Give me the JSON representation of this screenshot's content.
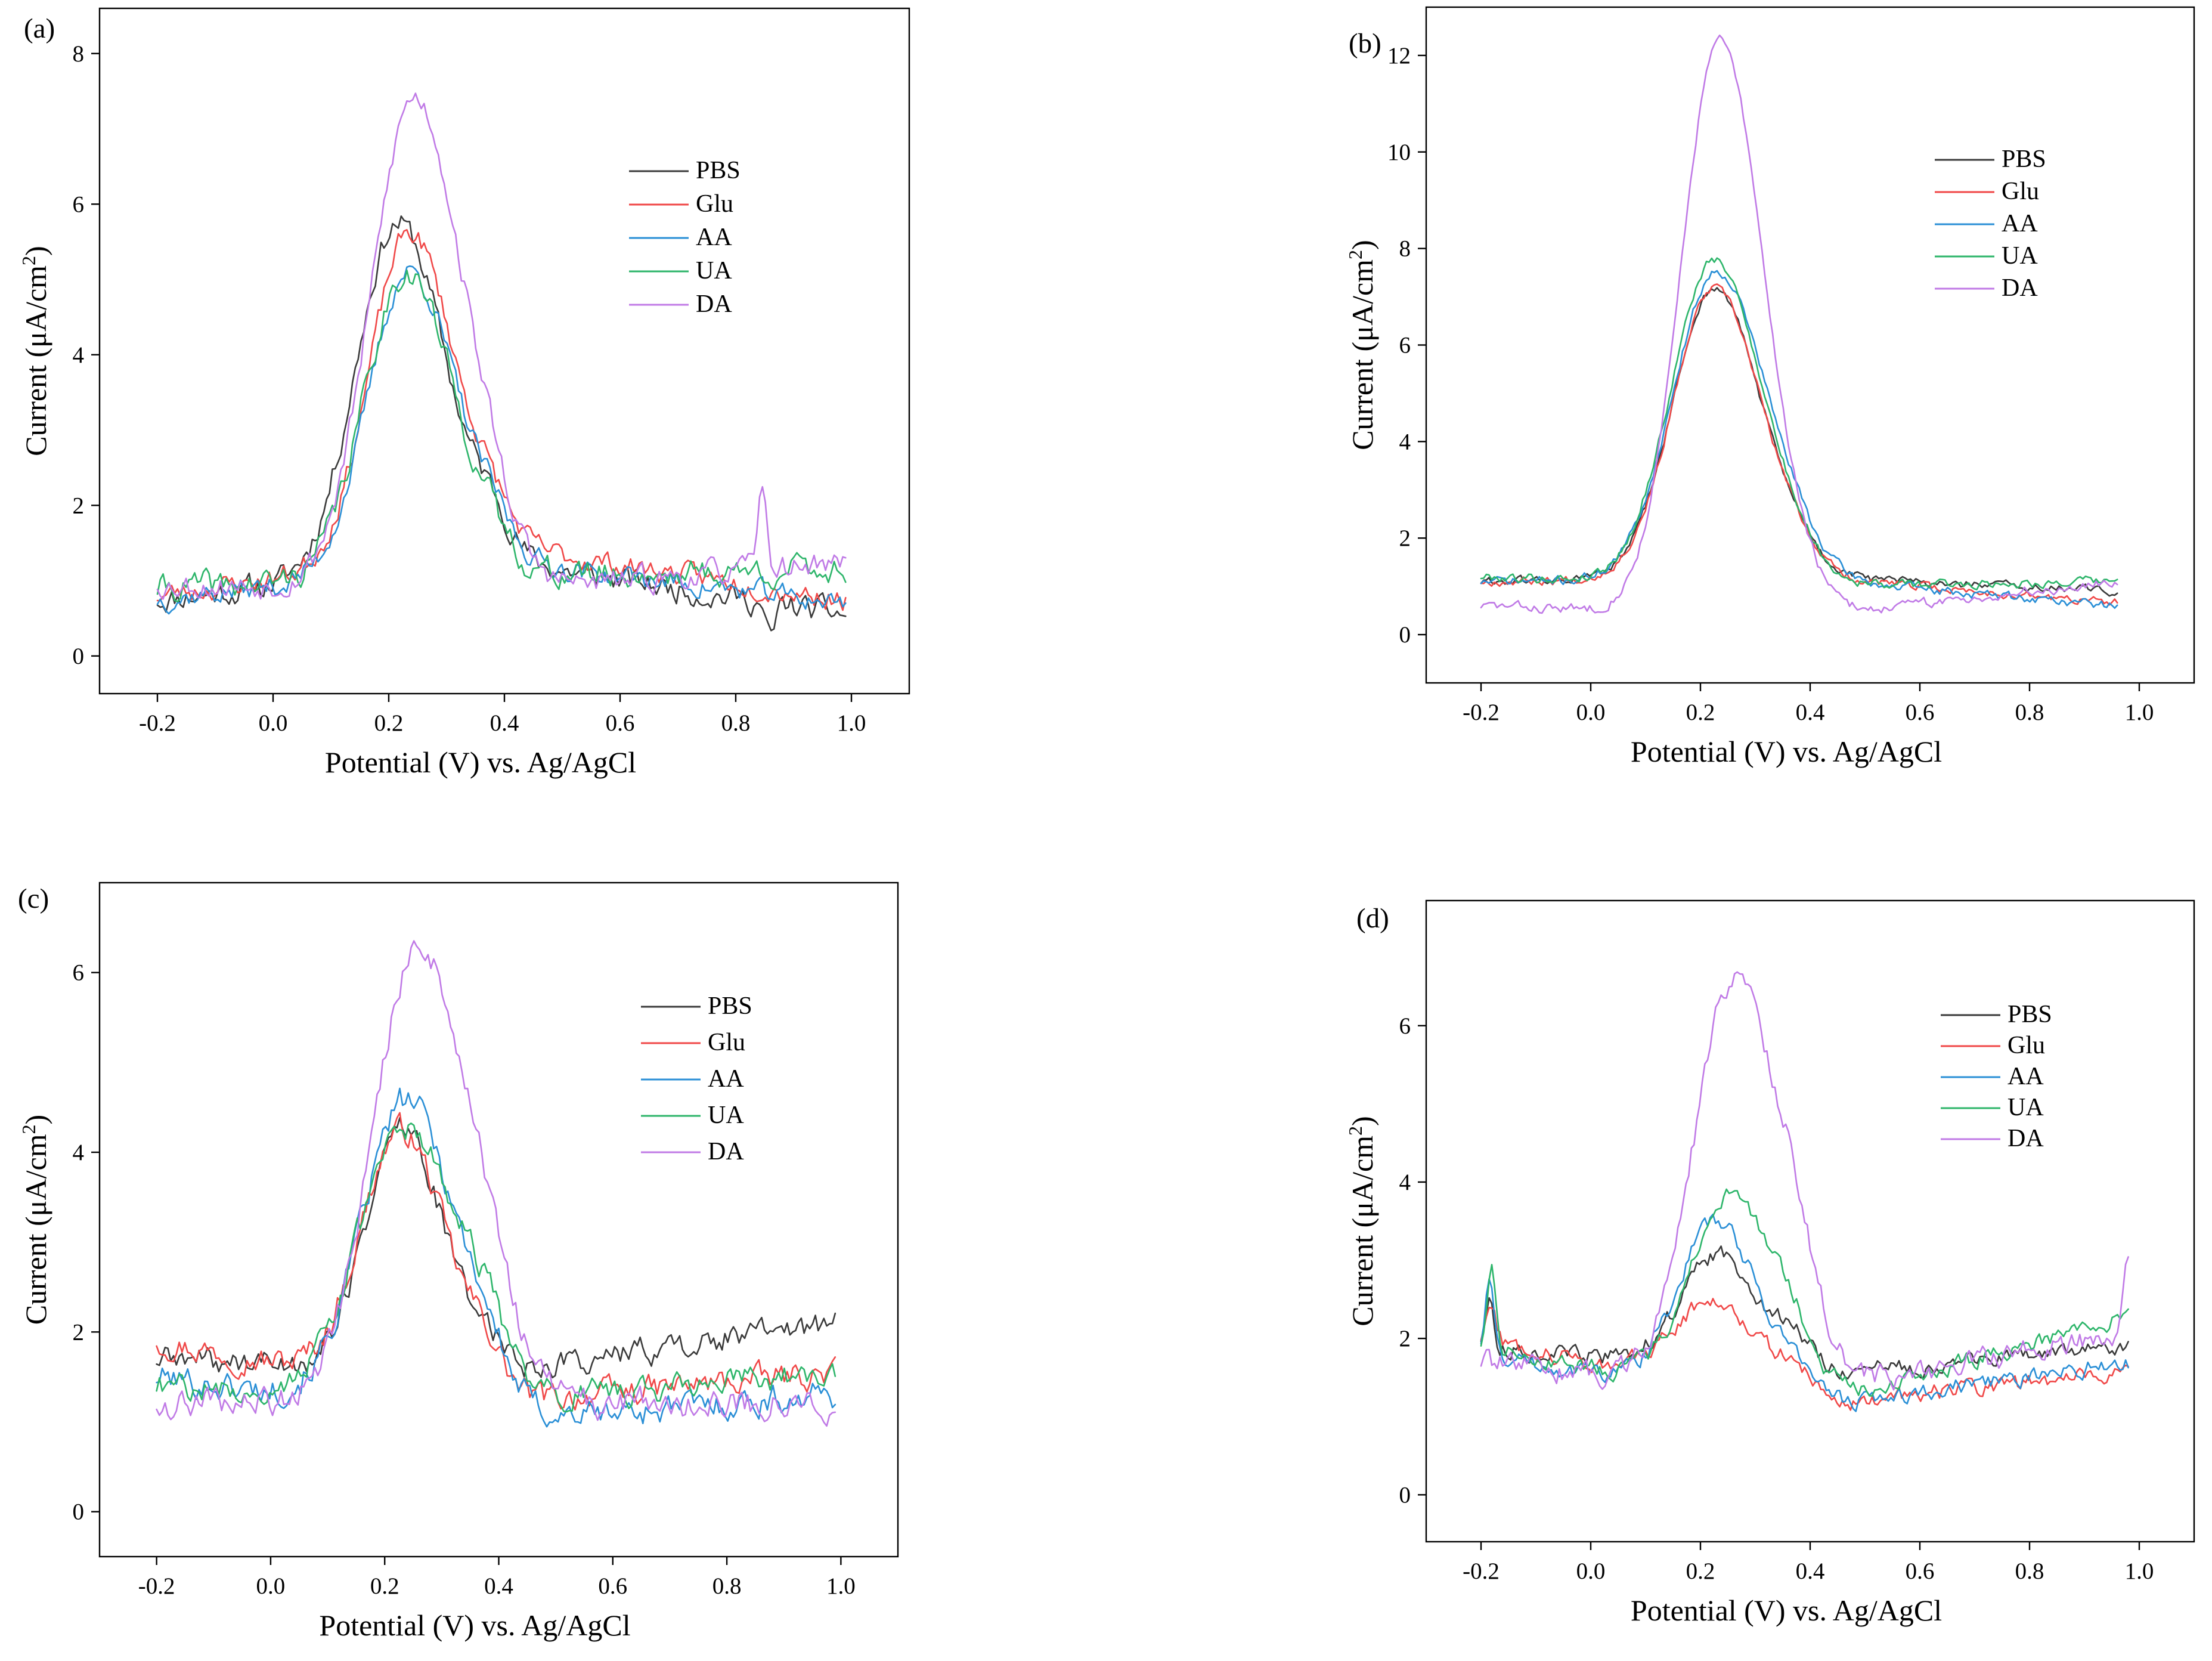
{
  "chart_data": [
    {
      "panel": "(a)",
      "type": "line",
      "xlabel": "Potential (V) vs. Ag/AgCl",
      "ylabel": "Current (μA/cm²)",
      "xlim": [
        -0.3,
        1.1
      ],
      "ylim": [
        -0.5,
        8.6
      ],
      "xticks": [
        -0.2,
        0.0,
        0.2,
        0.4,
        0.6,
        0.8,
        1.0
      ],
      "xtick_labels": [
        "-0.2",
        "0.0",
        "0.2",
        "0.4",
        "0.6",
        "0.8",
        "1.0"
      ],
      "yticks": [
        0,
        2,
        4,
        6,
        8
      ],
      "ytick_labels": [
        "0",
        "2",
        "4",
        "6",
        "8"
      ],
      "legend_position": "top-right",
      "x_start": -0.2,
      "x_end": 0.99,
      "series": [
        {
          "name": "PBS",
          "color": "#3a3a3a",
          "peak": 0.215,
          "height": 4.65,
          "width": 0.072,
          "shoulder": 0.35,
          "baseline_start": 0.75,
          "baseline_mid": 1.25,
          "baseline_end": 0.55,
          "noise": 0.23,
          "seed": 11,
          "spikes": [
            {
              "x": 0.86,
              "h": -0.5
            }
          ]
        },
        {
          "name": "Glu",
          "color": "#f04848",
          "peak": 0.235,
          "height": 4.35,
          "width": 0.068,
          "shoulder": 0.25,
          "baseline_start": 0.8,
          "baseline_mid": 1.45,
          "baseline_end": 0.75,
          "noise": 0.2,
          "seed": 23,
          "spikes": []
        },
        {
          "name": "AA",
          "color": "#2a8fd6",
          "peak": 0.235,
          "height": 4.0,
          "width": 0.07,
          "shoulder": 0.25,
          "baseline_start": 0.75,
          "baseline_mid": 1.25,
          "baseline_end": 0.7,
          "noise": 0.2,
          "seed": 37,
          "spikes": []
        },
        {
          "name": "UA",
          "color": "#2db56a",
          "peak": 0.23,
          "height": 4.1,
          "width": 0.072,
          "shoulder": 0.2,
          "baseline_start": 0.9,
          "baseline_mid": 1.05,
          "baseline_end": 1.15,
          "noise": 0.25,
          "seed": 41,
          "spikes": []
        },
        {
          "name": "DA",
          "color": "#c07ae6",
          "peak": 0.245,
          "height": 6.55,
          "width": 0.075,
          "shoulder": 0.3,
          "baseline_start": 0.95,
          "baseline_mid": 0.85,
          "baseline_end": 1.25,
          "noise": 0.22,
          "seed": 53,
          "spikes": [
            {
              "x": 0.845,
              "h": 1.0
            }
          ]
        }
      ]
    },
    {
      "panel": "(b)",
      "type": "line",
      "xlabel": "Potential (V) vs. Ag/AgCl",
      "ylabel": "Current (μA/cm²)",
      "xlim": [
        -0.3,
        1.1
      ],
      "ylim": [
        -1.0,
        13.0
      ],
      "xticks": [
        -0.2,
        0.0,
        0.2,
        0.4,
        0.6,
        0.8,
        1.0
      ],
      "xtick_labels": [
        "-0.2",
        "0.0",
        "0.2",
        "0.4",
        "0.6",
        "0.8",
        "1.0"
      ],
      "yticks": [
        0,
        2,
        4,
        6,
        8,
        10,
        12
      ],
      "ytick_labels": [
        "0",
        "2",
        "4",
        "6",
        "8",
        "10",
        "12"
      ],
      "legend_position": "top-right",
      "x_start": -0.2,
      "x_end": 0.96,
      "series": [
        {
          "name": "PBS",
          "color": "#3a3a3a",
          "peak": 0.225,
          "height": 6.0,
          "width": 0.075,
          "shoulder": 0.15,
          "baseline_start": 1.1,
          "baseline_mid": 1.2,
          "baseline_end": 0.9,
          "noise": 0.12,
          "seed": 61,
          "spikes": []
        },
        {
          "name": "Glu",
          "color": "#f04848",
          "peak": 0.225,
          "height": 6.0,
          "width": 0.075,
          "shoulder": 0.15,
          "baseline_start": 1.1,
          "baseline_mid": 1.2,
          "baseline_end": 0.65,
          "noise": 0.12,
          "seed": 67,
          "spikes": []
        },
        {
          "name": "AA",
          "color": "#2a8fd6",
          "peak": 0.23,
          "height": 6.4,
          "width": 0.08,
          "shoulder": 0.12,
          "baseline_start": 1.1,
          "baseline_mid": 1.15,
          "baseline_end": 0.6,
          "noise": 0.13,
          "seed": 71,
          "spikes": []
        },
        {
          "name": "UA",
          "color": "#2db56a",
          "peak": 0.225,
          "height": 6.7,
          "width": 0.078,
          "shoulder": 0.12,
          "baseline_start": 1.2,
          "baseline_mid": 1.0,
          "baseline_end": 1.1,
          "noise": 0.13,
          "seed": 79,
          "spikes": []
        },
        {
          "name": "DA",
          "color": "#c07ae6",
          "peak": 0.235,
          "height": 11.9,
          "width": 0.07,
          "shoulder": 0.15,
          "baseline_start": 0.6,
          "baseline_mid": 0.35,
          "baseline_end": 1.1,
          "noise": 0.14,
          "seed": 83,
          "spikes": []
        }
      ]
    },
    {
      "panel": "(c)",
      "type": "line",
      "xlabel": "Potential (V) vs. Ag/AgCl",
      "ylabel": "Current (μA/cm²)",
      "xlim": [
        -0.3,
        1.1
      ],
      "ylim": [
        -0.5,
        7.0
      ],
      "xticks": [
        -0.2,
        0.0,
        0.2,
        0.4,
        0.6,
        0.8,
        1.0
      ],
      "xtick_labels": [
        "-0.2",
        "0.0",
        "0.2",
        "0.4",
        "0.6",
        "0.8",
        "1.0"
      ],
      "yticks": [
        0,
        2,
        4,
        6
      ],
      "ytick_labels": [
        "0",
        "2",
        "4",
        "6"
      ],
      "legend_position": "top-right",
      "x_start": -0.2,
      "x_end": 0.99,
      "series": [
        {
          "name": "PBS",
          "color": "#3a3a3a",
          "peak": 0.23,
          "height": 2.7,
          "width": 0.062,
          "shoulder": 0.3,
          "baseline_start": 1.7,
          "baseline_mid": 1.55,
          "baseline_end": 2.1,
          "noise": 0.2,
          "seed": 89,
          "spikes": []
        },
        {
          "name": "Glu",
          "color": "#f04848",
          "peak": 0.23,
          "height": 2.85,
          "width": 0.07,
          "shoulder": 0.35,
          "baseline_start": 1.9,
          "baseline_mid": 1.2,
          "baseline_end": 1.55,
          "noise": 0.2,
          "seed": 97,
          "spikes": []
        },
        {
          "name": "AA",
          "color": "#2a8fd6",
          "peak": 0.24,
          "height": 3.45,
          "width": 0.078,
          "shoulder": 0.3,
          "baseline_start": 1.5,
          "baseline_mid": 1.0,
          "baseline_end": 1.3,
          "noise": 0.22,
          "seed": 101,
          "spikes": []
        },
        {
          "name": "UA",
          "color": "#2db56a",
          "peak": 0.24,
          "height": 3.0,
          "width": 0.085,
          "shoulder": 0.3,
          "baseline_start": 1.4,
          "baseline_mid": 1.2,
          "baseline_end": 1.55,
          "noise": 0.2,
          "seed": 107,
          "spikes": []
        },
        {
          "name": "DA",
          "color": "#c07ae6",
          "peak": 0.26,
          "height": 5.1,
          "width": 0.08,
          "shoulder": 0.3,
          "baseline_start": 1.2,
          "baseline_mid": 1.2,
          "baseline_end": 1.2,
          "noise": 0.22,
          "seed": 109,
          "spikes": []
        }
      ]
    },
    {
      "panel": "(d)",
      "type": "line",
      "xlabel": "Potential (V) vs. Ag/AgCl",
      "ylabel": "Current (μA/cm²)",
      "xlim": [
        -0.3,
        1.1
      ],
      "ylim": [
        -0.6,
        7.6
      ],
      "xticks": [
        -0.2,
        0.0,
        0.2,
        0.4,
        0.6,
        0.8,
        1.0
      ],
      "xtick_labels": [
        "-0.2",
        "0.0",
        "0.2",
        "0.4",
        "0.6",
        "0.8",
        "1.0"
      ],
      "yticks": [
        0,
        2,
        4,
        6
      ],
      "ytick_labels": [
        "0",
        "2",
        "4",
        "6"
      ],
      "legend_position": "top-right",
      "x_start": -0.2,
      "x_end": 0.98,
      "series": [
        {
          "name": "PBS",
          "color": "#3a3a3a",
          "peak": 0.235,
          "height": 1.45,
          "width": 0.07,
          "shoulder": 0.3,
          "baseline_start": 1.9,
          "baseline_mid": 1.5,
          "baseline_end": 1.9,
          "noise": 0.15,
          "seed": 113,
          "spikes": [
            {
              "x": -0.185,
              "h": 0.6
            }
          ]
        },
        {
          "name": "Glu",
          "color": "#f04848",
          "peak": 0.23,
          "height": 1.15,
          "width": 0.075,
          "shoulder": 0.3,
          "baseline_start": 2.0,
          "baseline_mid": 1.1,
          "baseline_end": 1.6,
          "noise": 0.15,
          "seed": 127,
          "spikes": [
            {
              "x": -0.18,
              "h": 0.5
            }
          ]
        },
        {
          "name": "AA",
          "color": "#2a8fd6",
          "peak": 0.23,
          "height": 2.2,
          "width": 0.07,
          "shoulder": 0.3,
          "baseline_start": 1.8,
          "baseline_mid": 1.1,
          "baseline_end": 1.7,
          "noise": 0.15,
          "seed": 131,
          "spikes": [
            {
              "x": -0.185,
              "h": 1.0
            }
          ]
        },
        {
          "name": "UA",
          "color": "#2db56a",
          "peak": 0.26,
          "height": 2.55,
          "width": 0.075,
          "shoulder": 0.3,
          "baseline_start": 1.9,
          "baseline_mid": 1.1,
          "baseline_end": 2.3,
          "noise": 0.15,
          "seed": 137,
          "spikes": [
            {
              "x": -0.18,
              "h": 1.0
            }
          ]
        },
        {
          "name": "DA",
          "color": "#c07ae6",
          "peak": 0.265,
          "height": 5.3,
          "width": 0.075,
          "shoulder": 0.5,
          "baseline_start": 1.7,
          "baseline_mid": 1.25,
          "baseline_end": 2.1,
          "noise": 0.2,
          "seed": 139,
          "spikes": [
            {
              "x": 0.98,
              "h": 1.1
            }
          ]
        }
      ]
    }
  ]
}
